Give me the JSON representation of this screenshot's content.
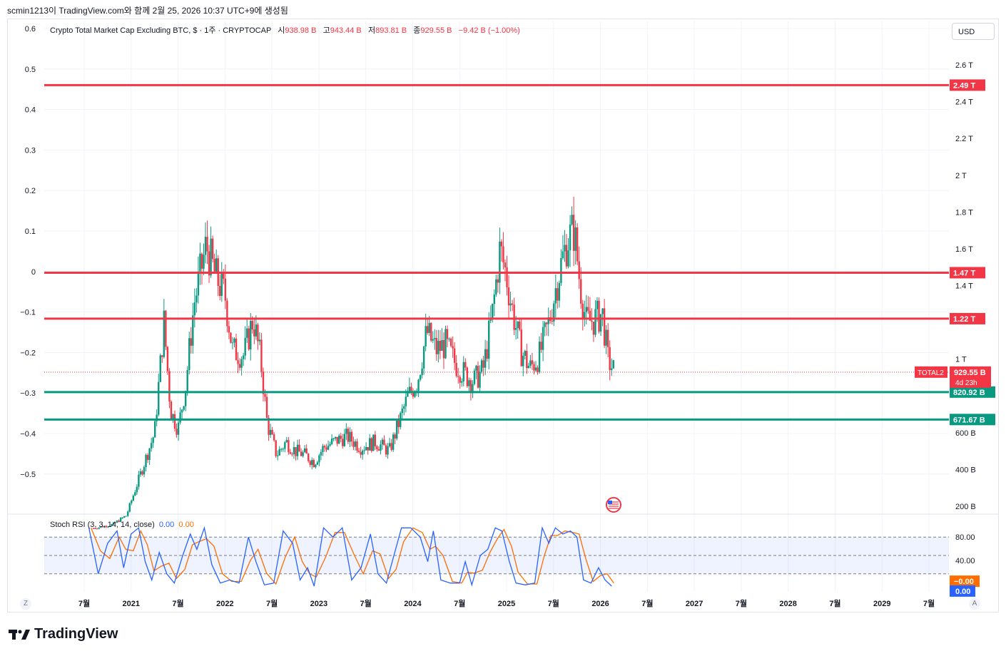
{
  "header": {
    "caption": "scmin1213이 TradingView.com와 함께 2월 25, 2026 10:37 UTC+9에 생성됨"
  },
  "legend": {
    "symbol": "Crypto Total Market Cap Excluding BTC, $ · 1주 · CRYPTOCAP",
    "open_label": "시",
    "open": "938.98 B",
    "high_label": "고",
    "high": "943.44 B",
    "low_label": "저",
    "low": "893.81 B",
    "close_label": "종",
    "close": "929.55 B",
    "change": "−9.42 B (−1.00%)"
  },
  "currency": "USD",
  "brand": "TradingView",
  "corner_left": "Z",
  "corner_right": "A",
  "colors": {
    "up": "#089981",
    "down": "#f23645",
    "resistance": "#f23645",
    "support": "#089981",
    "k_line": "#2962ff",
    "d_line": "#ff6d00"
  },
  "chart_data": {
    "type": "candlestick",
    "interval": "1W",
    "left_axis_ticks": [
      "0.6",
      "0.5",
      "0.4",
      "0.3",
      "0.2",
      "0.1",
      "0",
      "−0.1",
      "−0.2",
      "−0.3",
      "−0.4",
      "−0.5"
    ],
    "right_axis_ticks": [
      {
        "label": "2.6 T",
        "v": 2.6
      },
      {
        "label": "2.4 T",
        "v": 2.4
      },
      {
        "label": "2.2 T",
        "v": 2.2
      },
      {
        "label": "2 T",
        "v": 2.0
      },
      {
        "label": "1.8 T",
        "v": 1.8
      },
      {
        "label": "1.6 T",
        "v": 1.6
      },
      {
        "label": "1.4 T",
        "v": 1.4
      },
      {
        "label": "1 T",
        "v": 1.0
      },
      {
        "label": "600 B",
        "v": 0.6
      },
      {
        "label": "400 B",
        "v": 0.4
      },
      {
        "label": "200 B",
        "v": 0.2
      }
    ],
    "time_ticks": [
      "7월",
      "2021",
      "7월",
      "2022",
      "7월",
      "2023",
      "7월",
      "2024",
      "7월",
      "2025",
      "7월",
      "2026",
      "7월",
      "2027",
      "7월",
      "2028",
      "7월",
      "2029",
      "7월"
    ],
    "time_tick_years": [
      2020.5,
      2021.0,
      2021.5,
      2022.0,
      2022.5,
      2023.0,
      2023.5,
      2024.0,
      2024.5,
      2025.0,
      2025.5,
      2026.0,
      2026.5,
      2027.0,
      2027.5,
      2028.0,
      2028.5,
      2029.0,
      2029.5
    ],
    "price_path_trillions": [
      {
        "t": 2020.6,
        "v": 0.08
      },
      {
        "t": 2020.8,
        "v": 0.1
      },
      {
        "t": 2020.95,
        "v": 0.15
      },
      {
        "t": 2021.05,
        "v": 0.3
      },
      {
        "t": 2021.15,
        "v": 0.45
      },
      {
        "t": 2021.25,
        "v": 0.6
      },
      {
        "t": 2021.35,
        "v": 1.2
      },
      {
        "t": 2021.42,
        "v": 0.72
      },
      {
        "t": 2021.5,
        "v": 0.62
      },
      {
        "t": 2021.58,
        "v": 0.85
      },
      {
        "t": 2021.67,
        "v": 1.3
      },
      {
        "t": 2021.8,
        "v": 1.62
      },
      {
        "t": 2021.9,
        "v": 1.45
      },
      {
        "t": 2022.0,
        "v": 1.35
      },
      {
        "t": 2022.08,
        "v": 1.05
      },
      {
        "t": 2022.2,
        "v": 1.02
      },
      {
        "t": 2022.3,
        "v": 1.22
      },
      {
        "t": 2022.38,
        "v": 1.0
      },
      {
        "t": 2022.45,
        "v": 0.65
      },
      {
        "t": 2022.55,
        "v": 0.48
      },
      {
        "t": 2022.65,
        "v": 0.55
      },
      {
        "t": 2022.75,
        "v": 0.5
      },
      {
        "t": 2022.85,
        "v": 0.48
      },
      {
        "t": 2022.95,
        "v": 0.44
      },
      {
        "t": 2023.05,
        "v": 0.52
      },
      {
        "t": 2023.2,
        "v": 0.56
      },
      {
        "t": 2023.3,
        "v": 0.58
      },
      {
        "t": 2023.45,
        "v": 0.52
      },
      {
        "t": 2023.6,
        "v": 0.55
      },
      {
        "t": 2023.75,
        "v": 0.5
      },
      {
        "t": 2023.85,
        "v": 0.65
      },
      {
        "t": 2023.95,
        "v": 0.8
      },
      {
        "t": 2024.05,
        "v": 0.88
      },
      {
        "t": 2024.15,
        "v": 1.15
      },
      {
        "t": 2024.25,
        "v": 1.05
      },
      {
        "t": 2024.35,
        "v": 1.08
      },
      {
        "t": 2024.45,
        "v": 0.98
      },
      {
        "t": 2024.55,
        "v": 0.92
      },
      {
        "t": 2024.65,
        "v": 0.88
      },
      {
        "t": 2024.75,
        "v": 0.94
      },
      {
        "t": 2024.85,
        "v": 1.25
      },
      {
        "t": 2024.93,
        "v": 1.6
      },
      {
        "t": 2025.0,
        "v": 1.45
      },
      {
        "t": 2025.05,
        "v": 1.3
      },
      {
        "t": 2025.15,
        "v": 1.05
      },
      {
        "t": 2025.25,
        "v": 0.95
      },
      {
        "t": 2025.35,
        "v": 1.02
      },
      {
        "t": 2025.45,
        "v": 1.2
      },
      {
        "t": 2025.55,
        "v": 1.45
      },
      {
        "t": 2025.65,
        "v": 1.65
      },
      {
        "t": 2025.72,
        "v": 1.7
      },
      {
        "t": 2025.78,
        "v": 1.42
      },
      {
        "t": 2025.85,
        "v": 1.2
      },
      {
        "t": 2025.95,
        "v": 1.22
      },
      {
        "t": 2026.02,
        "v": 1.25
      },
      {
        "t": 2026.08,
        "v": 1.0
      },
      {
        "t": 2026.15,
        "v": 0.93
      }
    ],
    "price_lines": [
      {
        "label": "2.49 T",
        "value_trillions": 2.49,
        "kind": "resistance"
      },
      {
        "label": "1.47 T",
        "value_trillions": 1.47,
        "kind": "resistance"
      },
      {
        "label": "1.22 T",
        "value_trillions": 1.22,
        "kind": "resistance"
      },
      {
        "label": "820.92 B",
        "value_trillions": 0.82092,
        "kind": "support"
      },
      {
        "label": "671.67 B",
        "value_trillions": 0.67167,
        "kind": "support"
      }
    ],
    "last_price": {
      "symbol": "TOTAL2",
      "label": "929.55 B",
      "countdown": "4d 23h",
      "value_trillions": 0.92955
    },
    "stoch_rsi": {
      "legend": "Stoch RSI (3, 3, 14, 14, close)",
      "k_value": "0.00",
      "d_value": "0.00",
      "levels": [
        "80.00",
        "40.00"
      ],
      "d_tag": "−0.00",
      "k_tag": "0.00",
      "k_path": [
        {
          "t": 2020.55,
          "v": 95
        },
        {
          "t": 2020.65,
          "v": 20
        },
        {
          "t": 2020.75,
          "v": 70
        },
        {
          "t": 2020.85,
          "v": 90
        },
        {
          "t": 2020.92,
          "v": 30
        },
        {
          "t": 2021.0,
          "v": 85
        },
        {
          "t": 2021.08,
          "v": 95
        },
        {
          "t": 2021.15,
          "v": 40
        },
        {
          "t": 2021.22,
          "v": 10
        },
        {
          "t": 2021.3,
          "v": 55
        },
        {
          "t": 2021.38,
          "v": 20
        },
        {
          "t": 2021.46,
          "v": 5
        },
        {
          "t": 2021.55,
          "v": 50
        },
        {
          "t": 2021.63,
          "v": 85
        },
        {
          "t": 2021.7,
          "v": 60
        },
        {
          "t": 2021.78,
          "v": 95
        },
        {
          "t": 2021.86,
          "v": 35
        },
        {
          "t": 2021.95,
          "v": 5
        },
        {
          "t": 2022.05,
          "v": 10
        },
        {
          "t": 2022.15,
          "v": 5
        },
        {
          "t": 2022.25,
          "v": 80
        },
        {
          "t": 2022.33,
          "v": 40
        },
        {
          "t": 2022.42,
          "v": 2
        },
        {
          "t": 2022.52,
          "v": 5
        },
        {
          "t": 2022.62,
          "v": 90
        },
        {
          "t": 2022.72,
          "v": 70
        },
        {
          "t": 2022.8,
          "v": 10
        },
        {
          "t": 2022.88,
          "v": 30
        },
        {
          "t": 2022.95,
          "v": 0
        },
        {
          "t": 2023.05,
          "v": 95
        },
        {
          "t": 2023.15,
          "v": 80
        },
        {
          "t": 2023.25,
          "v": 95
        },
        {
          "t": 2023.35,
          "v": 10
        },
        {
          "t": 2023.45,
          "v": 30
        },
        {
          "t": 2023.55,
          "v": 85
        },
        {
          "t": 2023.63,
          "v": 20
        },
        {
          "t": 2023.72,
          "v": 5
        },
        {
          "t": 2023.8,
          "v": 50
        },
        {
          "t": 2023.88,
          "v": 95
        },
        {
          "t": 2023.98,
          "v": 95
        },
        {
          "t": 2024.08,
          "v": 80
        },
        {
          "t": 2024.16,
          "v": 40
        },
        {
          "t": 2024.22,
          "v": 90
        },
        {
          "t": 2024.3,
          "v": 10
        },
        {
          "t": 2024.4,
          "v": 5
        },
        {
          "t": 2024.5,
          "v": 5
        },
        {
          "t": 2024.56,
          "v": 40
        },
        {
          "t": 2024.63,
          "v": 2
        },
        {
          "t": 2024.72,
          "v": 50
        },
        {
          "t": 2024.8,
          "v": 60
        },
        {
          "t": 2024.88,
          "v": 95
        },
        {
          "t": 2024.95,
          "v": 90
        },
        {
          "t": 2025.03,
          "v": 40
        },
        {
          "t": 2025.1,
          "v": 5
        },
        {
          "t": 2025.2,
          "v": 2
        },
        {
          "t": 2025.3,
          "v": 5
        },
        {
          "t": 2025.38,
          "v": 95
        },
        {
          "t": 2025.45,
          "v": 70
        },
        {
          "t": 2025.52,
          "v": 95
        },
        {
          "t": 2025.6,
          "v": 85
        },
        {
          "t": 2025.68,
          "v": 90
        },
        {
          "t": 2025.75,
          "v": 80
        },
        {
          "t": 2025.82,
          "v": 10
        },
        {
          "t": 2025.9,
          "v": 5
        },
        {
          "t": 2025.98,
          "v": 30
        },
        {
          "t": 2026.05,
          "v": 10
        },
        {
          "t": 2026.12,
          "v": 0
        }
      ]
    }
  }
}
